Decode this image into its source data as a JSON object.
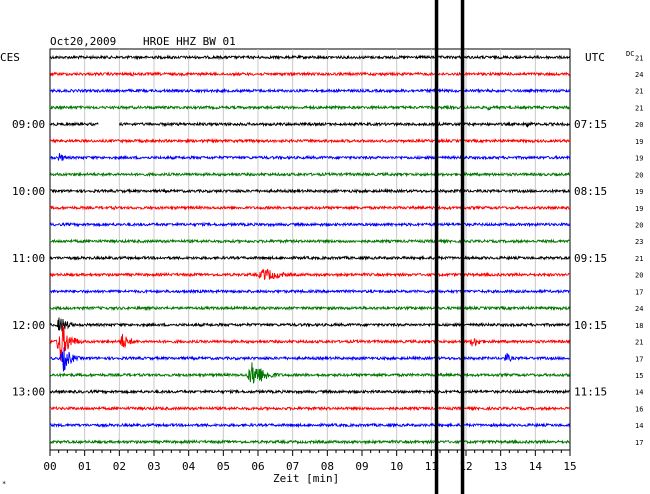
{
  "chart_data": {
    "type": "line",
    "title": "Oct20,2009",
    "subtitle": "HROE HHZ BW 01",
    "xlabel": "Zeit [min]",
    "left_header": "CES",
    "right_header": "UTC",
    "corner_label": "DC",
    "footer_mark": "*",
    "xlim": [
      0,
      15
    ],
    "x_ticks": [
      "00",
      "01",
      "02",
      "03",
      "04",
      "05",
      "06",
      "07",
      "08",
      "09",
      "10",
      "11",
      "12",
      "13",
      "14",
      "15"
    ],
    "trace_count": 24,
    "trace_colors": [
      "#000000",
      "#ff0000",
      "#0000ff",
      "#007700"
    ],
    "left_time_labels": [
      {
        "trace": 4,
        "text": "09:00"
      },
      {
        "trace": 8,
        "text": "10:00"
      },
      {
        "trace": 12,
        "text": "11:00"
      },
      {
        "trace": 16,
        "text": "12:00"
      },
      {
        "trace": 20,
        "text": "13:00"
      }
    ],
    "right_time_labels": [
      {
        "trace": 0,
        "text": "UTC"
      },
      {
        "trace": 4,
        "text": "07:15"
      },
      {
        "trace": 8,
        "text": "08:15"
      },
      {
        "trace": 12,
        "text": "09:15"
      },
      {
        "trace": 16,
        "text": "10:15"
      },
      {
        "trace": 20,
        "text": "11:15"
      }
    ],
    "dc_offsets": [
      21,
      24,
      21,
      21,
      20,
      19,
      19,
      20,
      19,
      19,
      20,
      23,
      21,
      20,
      17,
      24,
      18,
      21,
      17,
      15,
      14,
      16,
      14,
      17
    ],
    "events": [
      {
        "trace": 13,
        "x": 6.0,
        "amplitude": 7,
        "duration": 1.6
      },
      {
        "trace": 16,
        "x": 0.2,
        "amplitude": 10,
        "duration": 0.7
      },
      {
        "trace": 17,
        "x": 0.2,
        "amplitude": 22,
        "duration": 0.8
      },
      {
        "trace": 17,
        "x": 2.0,
        "amplitude": 9,
        "duration": 0.7
      },
      {
        "trace": 17,
        "x": 12.1,
        "amplitude": 6,
        "duration": 0.8
      },
      {
        "trace": 18,
        "x": 0.3,
        "amplitude": 14,
        "duration": 0.7
      },
      {
        "trace": 18,
        "x": 13.1,
        "amplitude": 6,
        "duration": 0.5
      },
      {
        "trace": 19,
        "x": 5.7,
        "amplitude": 14,
        "duration": 1.2
      },
      {
        "trace": 1,
        "x": 2.3,
        "amplitude": 3,
        "duration": 0.4
      },
      {
        "trace": 3,
        "x": 12.6,
        "amplitude": 3,
        "duration": 0.4
      },
      {
        "trace": 4,
        "x": 13.7,
        "amplitude": 4,
        "duration": 0.5
      },
      {
        "trace": 6,
        "x": 0.2,
        "amplitude": 5,
        "duration": 0.6
      },
      {
        "trace": 9,
        "x": 1.8,
        "amplitude": 2,
        "duration": 0.4
      }
    ],
    "gaps": [
      {
        "trace": 4,
        "from": 1.4,
        "to": 2.0
      }
    ],
    "vertical_markers": [
      11.15,
      11.9
    ]
  }
}
